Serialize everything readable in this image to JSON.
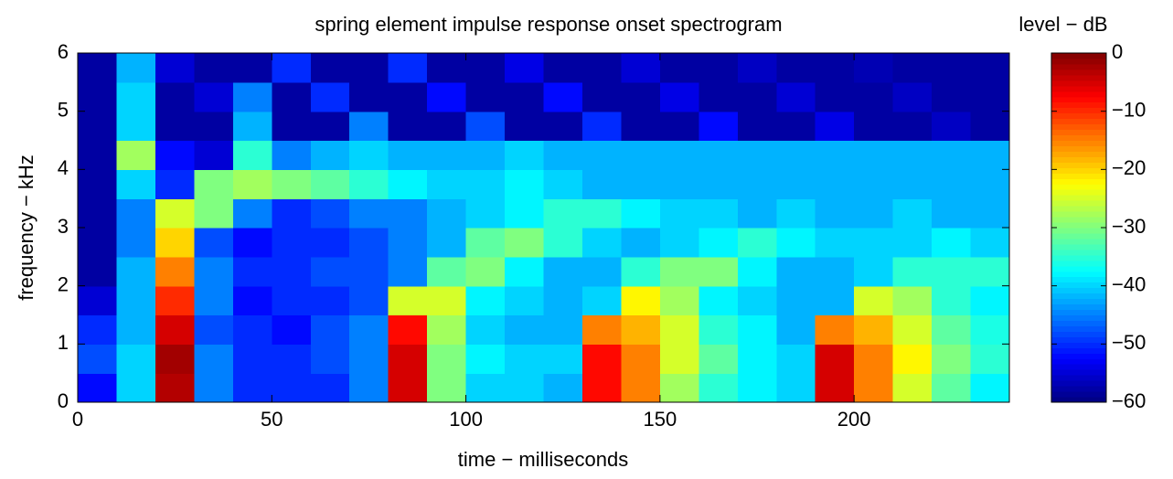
{
  "chart_data": {
    "type": "heatmap",
    "title": "spring element impulse response onset spectrogram",
    "x_label": "time − milliseconds",
    "y_label": "frequency − kHz",
    "colormap": "jet",
    "x_edges": [
      0,
      10,
      20,
      30,
      40,
      50,
      60,
      70,
      80,
      90,
      100,
      110,
      120,
      130,
      140,
      150,
      160,
      170,
      180,
      190,
      200,
      210,
      220,
      230,
      240
    ],
    "y_edges": [
      0,
      0.5,
      1,
      1.5,
      2,
      2.5,
      3,
      3.5,
      4,
      4.5,
      5,
      5.5,
      6
    ],
    "xlim": [
      0,
      240
    ],
    "ylim": [
      0,
      6
    ],
    "xticks": [
      0,
      50,
      100,
      150,
      200
    ],
    "yticks": [
      0,
      1,
      2,
      3,
      4,
      5,
      6
    ],
    "z": [
      [
        -52,
        -40,
        -3,
        -45,
        -50,
        -50,
        -50,
        -45,
        -5,
        -30,
        -40,
        -40,
        -42,
        -8,
        -15,
        -28,
        -35,
        -38,
        -40,
        -5,
        -15,
        -25,
        -32,
        -38
      ],
      [
        -48,
        -40,
        -2,
        -45,
        -50,
        -50,
        -48,
        -45,
        -5,
        -30,
        -38,
        -40,
        -40,
        -8,
        -15,
        -25,
        -32,
        -38,
        -40,
        -5,
        -15,
        -22,
        -30,
        -35
      ],
      [
        -50,
        -42,
        -5,
        -48,
        -50,
        -52,
        -48,
        -45,
        -8,
        -28,
        -40,
        -42,
        -42,
        -15,
        -18,
        -25,
        -35,
        -38,
        -42,
        -15,
        -18,
        -25,
        -32,
        -36
      ],
      [
        -55,
        -42,
        -10,
        -45,
        -52,
        -50,
        -50,
        -48,
        -25,
        -25,
        -38,
        -40,
        -42,
        -40,
        -22,
        -28,
        -38,
        -40,
        -42,
        -42,
        -25,
        -28,
        -35,
        -38
      ],
      [
        -58,
        -42,
        -15,
        -45,
        -50,
        -50,
        -48,
        -48,
        -45,
        -32,
        -30,
        -38,
        -42,
        -42,
        -35,
        -30,
        -30,
        -38,
        -42,
        -42,
        -40,
        -35,
        -35,
        -35
      ],
      [
        -58,
        -45,
        -20,
        -48,
        -52,
        -50,
        -50,
        -48,
        -45,
        -42,
        -32,
        -30,
        -35,
        -40,
        -42,
        -40,
        -38,
        -35,
        -38,
        -40,
        -40,
        -40,
        -38,
        -40
      ],
      [
        -58,
        -45,
        -25,
        -30,
        -45,
        -50,
        -48,
        -45,
        -45,
        -42,
        -40,
        -38,
        -35,
        -35,
        -38,
        -40,
        -40,
        -42,
        -40,
        -42,
        -42,
        -40,
        -42,
        -42
      ],
      [
        -58,
        -40,
        -50,
        -30,
        -28,
        -30,
        -32,
        -35,
        -38,
        -40,
        -40,
        -38,
        -40,
        -42,
        -42,
        -42,
        -42,
        -42,
        -42,
        -42,
        -42,
        -42,
        -42,
        -42
      ],
      [
        -58,
        -28,
        -52,
        -55,
        -35,
        -45,
        -42,
        -40,
        -42,
        -42,
        -42,
        -40,
        -42,
        -42,
        -42,
        -42,
        -42,
        -42,
        -42,
        -42,
        -42,
        -42,
        -42,
        -42
      ],
      [
        -58,
        -40,
        -58,
        -58,
        -42,
        -58,
        -58,
        -45,
        -58,
        -58,
        -48,
        -58,
        -58,
        -50,
        -58,
        -58,
        -52,
        -58,
        -58,
        -54,
        -58,
        -58,
        -56,
        -58
      ],
      [
        -58,
        -40,
        -58,
        -55,
        -45,
        -58,
        -50,
        -58,
        -58,
        -52,
        -58,
        -58,
        -52,
        -58,
        -58,
        -54,
        -58,
        -58,
        -55,
        -58,
        -58,
        -56,
        -58,
        -58
      ],
      [
        -58,
        -42,
        -55,
        -58,
        -58,
        -50,
        -58,
        -58,
        -50,
        -58,
        -58,
        -54,
        -58,
        -58,
        -55,
        -58,
        -58,
        -56,
        -58,
        -58,
        -57,
        -58,
        -58,
        -58
      ]
    ],
    "colorbar": {
      "label": "level − dB",
      "lim": [
        -60,
        0
      ],
      "ticks": [
        0,
        {
          "value": -10,
          "label": "−10"
        },
        {
          "value": -20,
          "label": "−20"
        },
        {
          "value": -30,
          "label": "−30"
        },
        {
          "value": -40,
          "label": "−40"
        },
        {
          "value": -50,
          "label": "−50"
        },
        {
          "value": -60,
          "label": "−60"
        }
      ]
    }
  }
}
